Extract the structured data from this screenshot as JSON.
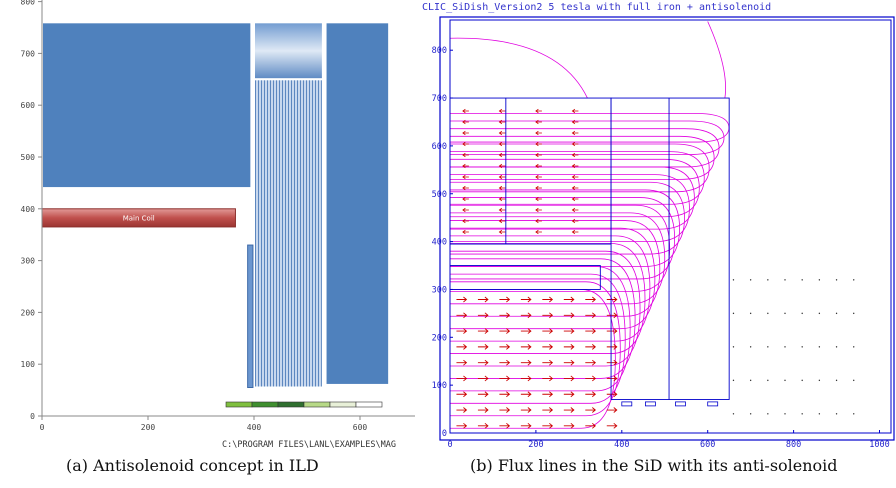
{
  "captions": {
    "a": "(a) Antisolenoid concept in ILD",
    "b": "(b) Flux lines in the SiD with its anti-solenoid"
  },
  "colors": {
    "iron_blue": "#4f81bd",
    "coil_red": "#c0504d",
    "plot_border": "#0000cc",
    "flux_line": "#e000e0",
    "arrow": "#cc0000"
  },
  "chart_data": [
    {
      "type": "diagram",
      "panel": "a",
      "title": "",
      "x_ticks": [
        "0",
        "200",
        "400",
        "600"
      ],
      "y_ticks": [
        "0",
        "100",
        "200",
        "300",
        "400",
        "500",
        "600",
        "700",
        "800"
      ],
      "xlim": [
        0,
        700
      ],
      "ylim": [
        0,
        800
      ],
      "coil_label": "Main Coil",
      "path_text": "C:\\PROGRAM FILES\\LANL\\EXAMPLES\\MAG",
      "regions": [
        {
          "name": "upper-yoke",
          "x0": 0,
          "x1": 395,
          "y0": 440,
          "y1": 760
        },
        {
          "name": "endcap-top",
          "x0": 400,
          "x1": 530,
          "y0": 650,
          "y1": 760
        },
        {
          "name": "endcap-coils",
          "x0": 400,
          "x1": 530,
          "y0": 55,
          "y1": 650
        },
        {
          "name": "outer-yoke",
          "x0": 535,
          "x1": 655,
          "y0": 60,
          "y1": 760
        },
        {
          "name": "main-coil",
          "x0": 0,
          "x1": 365,
          "y0": 365,
          "y1": 400
        },
        {
          "name": "anti-coil",
          "x0": 388,
          "x1": 398,
          "y0": 55,
          "y1": 330
        }
      ]
    },
    {
      "type": "diagram",
      "panel": "b",
      "title": "CLIC_SiDish_Version2 5 tesla with full iron + antisolenoid",
      "x_ticks": [
        "0",
        "200",
        "400",
        "600",
        "800",
        "1000"
      ],
      "y_ticks": [
        "0",
        "100",
        "200",
        "300",
        "400",
        "500",
        "600",
        "700",
        "800"
      ],
      "xlim": [
        0,
        1000
      ],
      "ylim": [
        0,
        870
      ],
      "regions": [
        {
          "name": "barrel-iron",
          "x0": 0,
          "x1": 375,
          "y0": 395,
          "y1": 700
        },
        {
          "name": "endcap-iron",
          "x0": 375,
          "x1": 650,
          "y0": 70,
          "y1": 700
        },
        {
          "name": "coil-region",
          "x0": 0,
          "x1": 350,
          "y0": 300,
          "y1": 350
        }
      ]
    }
  ]
}
